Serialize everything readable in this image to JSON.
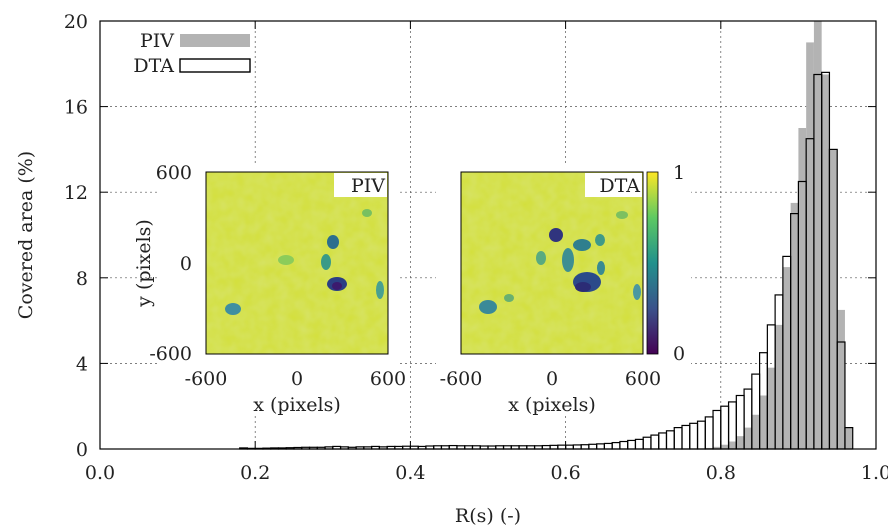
{
  "chart_data": {
    "type": "bar",
    "xlabel": "R(s) (-)",
    "ylabel": "Covered area (%)",
    "xlim": [
      0.0,
      1.0
    ],
    "ylim": [
      0,
      20
    ],
    "x_ticks": [
      "0.0",
      "0.2",
      "0.4",
      "0.6",
      "0.8",
      "1.0"
    ],
    "y_ticks": [
      "0",
      "4",
      "8",
      "12",
      "16",
      "20"
    ],
    "grid": true,
    "legend_position": "top-left",
    "bin_width": 0.01,
    "bin_start": 0.0,
    "series": [
      {
        "name": "PIV",
        "style": "filled",
        "color": "#b3b3b3",
        "values": [
          0,
          0,
          0,
          0,
          0,
          0,
          0,
          0,
          0,
          0,
          0,
          0,
          0,
          0,
          0,
          0,
          0,
          0,
          0,
          0,
          0,
          0,
          0,
          0,
          0,
          0,
          0,
          0,
          0,
          0,
          0,
          0,
          0,
          0,
          0,
          0,
          0,
          0,
          0,
          0,
          0,
          0,
          0,
          0,
          0,
          0,
          0,
          0,
          0,
          0,
          0,
          0,
          0,
          0,
          0,
          0,
          0,
          0,
          0,
          0,
          0,
          0,
          0,
          0,
          0,
          0,
          0,
          0,
          0,
          0,
          0,
          0,
          0,
          0,
          0,
          0,
          0,
          0,
          0.05,
          0.1,
          0.2,
          0.35,
          0.6,
          1.0,
          1.6,
          2.5,
          3.8,
          5.8,
          8.5,
          11.5,
          15.0,
          19.0,
          21.0,
          17.5,
          14.0,
          6.5,
          1.0
        ]
      },
      {
        "name": "DTA",
        "style": "outline",
        "color": "#000000",
        "values": [
          0,
          0,
          0,
          0,
          0,
          0,
          0,
          0,
          0,
          0,
          0,
          0,
          0,
          0,
          0,
          0,
          0,
          0,
          0.05,
          0.03,
          0.03,
          0.04,
          0.05,
          0.05,
          0.06,
          0.07,
          0.08,
          0.08,
          0.08,
          0.1,
          0.12,
          0.1,
          0.08,
          0.1,
          0.1,
          0.12,
          0.1,
          0.12,
          0.12,
          0.13,
          0.13,
          0.12,
          0.14,
          0.15,
          0.15,
          0.16,
          0.15,
          0.15,
          0.15,
          0.14,
          0.14,
          0.15,
          0.15,
          0.15,
          0.15,
          0.15,
          0.15,
          0.16,
          0.17,
          0.18,
          0.18,
          0.19,
          0.2,
          0.22,
          0.24,
          0.26,
          0.3,
          0.35,
          0.4,
          0.45,
          0.55,
          0.65,
          0.75,
          0.85,
          1.0,
          1.1,
          1.2,
          1.3,
          1.5,
          1.8,
          2.0,
          2.2,
          2.5,
          2.8,
          3.5,
          4.5,
          5.8,
          7.2,
          9.0,
          11.0,
          12.5,
          14.5,
          17.5,
          17.6,
          14.0,
          5.0,
          1.0
        ]
      }
    ],
    "insets": [
      {
        "tag": "PIV",
        "xlabel": "x (pixels)",
        "ylabel": "y (pixels)",
        "x_ticks": [
          "-600",
          "0",
          "600"
        ],
        "y_ticks": [
          "600",
          "0",
          "-600"
        ]
      },
      {
        "tag": "DTA",
        "xlabel": "x (pixels)",
        "x_ticks": [
          "-600",
          "0",
          "600"
        ],
        "colorbar_ticks": [
          "1",
          "0"
        ],
        "colormap": [
          "#440154",
          "#3b528b",
          "#21918c",
          "#5ec962",
          "#fde725"
        ]
      }
    ]
  }
}
